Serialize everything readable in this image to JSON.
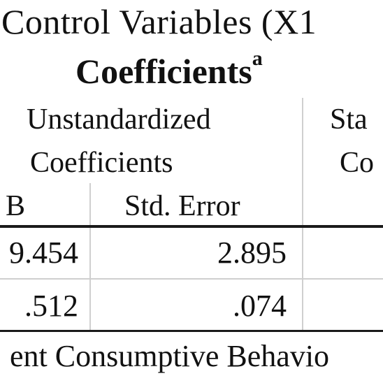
{
  "page": {
    "title_line": "Control Variables (X1",
    "table_title": "Coefficients",
    "table_title_superscript": "a"
  },
  "table": {
    "group_headers": {
      "unstandardized_line1": "Unstandardized",
      "unstandardized_line2": "Coefficients",
      "standardized_line1": "Sta",
      "standardized_line2": "Co"
    },
    "columns": [
      "B",
      "Std. Error"
    ],
    "rows": [
      [
        "9.454",
        "2.895"
      ],
      [
        ".512",
        ".074"
      ]
    ]
  },
  "footnote": "ent Consumptive Behavio"
}
